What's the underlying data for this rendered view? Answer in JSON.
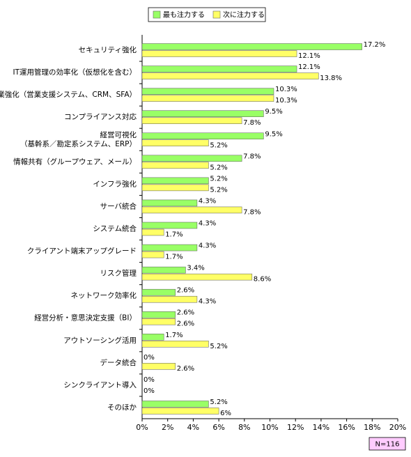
{
  "chart_data": {
    "type": "hbar",
    "categories": [
      "セキュリティ強化",
      "IT運用管理の効率化（仮想化を含む）",
      "営業強化（営業支援システム、CRM、SFA）",
      "コンプライアンス対応",
      "経営可視化\n（基幹系／勘定系システム、ERP）",
      "情報共有（グループウェア、メール）",
      "インフラ強化",
      "サーバ統合",
      "システム統合",
      "クライアント端末アップグレード",
      "リスク管理",
      "ネットワーク効率化",
      "経営分析・意思決定支援（BI）",
      "アウトソーシング活用",
      "データ統合",
      "シンクライアント導入",
      "そのほか"
    ],
    "series": [
      {
        "name": "最も注力する",
        "color": "#99ff66",
        "values": [
          17.2,
          12.1,
          10.3,
          9.5,
          9.5,
          7.8,
          5.2,
          4.3,
          4.3,
          4.3,
          3.4,
          2.6,
          2.6,
          1.7,
          0,
          0,
          5.2
        ],
        "value_labels": [
          "17.2%",
          "12.1%",
          "10.3%",
          "9.5%",
          "9.5%",
          "7.8%",
          "5.2%",
          "4.3%",
          "4.3%",
          "4.3%",
          "3.4%",
          "2.6%",
          "2.6%",
          "1.7%",
          "0%",
          "0%",
          "5.2%"
        ]
      },
      {
        "name": "次に注力する",
        "color": "#ffff66",
        "values": [
          12.1,
          13.8,
          10.3,
          7.8,
          5.2,
          5.2,
          5.2,
          7.8,
          1.7,
          1.7,
          8.6,
          4.3,
          2.6,
          5.2,
          2.6,
          0,
          6
        ],
        "value_labels": [
          "12.1%",
          "13.8%",
          "10.3%",
          "7.8%",
          "5.2%",
          "5.2%",
          "5.2%",
          "7.8%",
          "1.7%",
          "1.7%",
          "8.6%",
          "4.3%",
          "2.6%",
          "5.2%",
          "2.6%",
          "0%",
          "6%"
        ]
      }
    ],
    "xlim": [
      0,
      20
    ],
    "xticks": [
      {
        "value": 0,
        "label": "0%"
      },
      {
        "value": 2,
        "label": "2%"
      },
      {
        "value": 4,
        "label": "4%"
      },
      {
        "value": 6,
        "label": "6%"
      },
      {
        "value": 8,
        "label": "8%"
      },
      {
        "value": 10,
        "label": "10%"
      },
      {
        "value": 12,
        "label": "12%"
      },
      {
        "value": 14,
        "label": "14%"
      },
      {
        "value": 16,
        "label": "16%"
      },
      {
        "value": 18,
        "label": "18%"
      },
      {
        "value": 20,
        "label": "20%"
      }
    ],
    "grid": false,
    "legend": "top",
    "note": "N=116"
  }
}
